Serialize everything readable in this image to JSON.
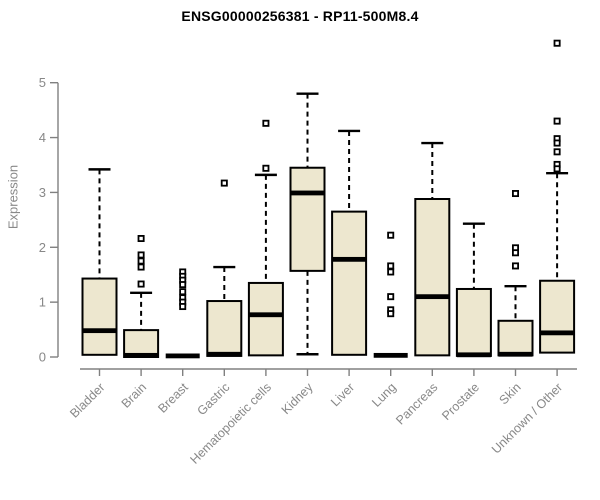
{
  "chart_data": {
    "type": "boxplot",
    "title": "ENSG00000256381 - RP11-500M8.4",
    "ylabel": "Expression",
    "ylim": [
      0,
      5.8
    ],
    "yticks": [
      0,
      1,
      2,
      3,
      4,
      5
    ],
    "grid": false,
    "categories": [
      "Bladder",
      "Brain",
      "Breast",
      "Gastric",
      "Hematopoietic cells",
      "Kidney",
      "Liver",
      "Lung",
      "Pancreas",
      "Prostate",
      "Skin",
      "Unknown / Other"
    ],
    "boxes": [
      {
        "category": "Bladder",
        "low": 0.04,
        "q1": 0.04,
        "median": 0.48,
        "q3": 1.43,
        "high": 3.42,
        "outliers": []
      },
      {
        "category": "Brain",
        "low": 0.0,
        "q1": 0.0,
        "median": 0.03,
        "q3": 0.49,
        "high": 1.17,
        "outliers": [
          2.16,
          1.86,
          1.75,
          1.64,
          1.33
        ]
      },
      {
        "category": "Breast",
        "low": 0.0,
        "q1": 0.0,
        "median": 0.02,
        "q3": 0.04,
        "high": 0.04,
        "outliers": [
          1.55,
          1.47,
          1.4,
          1.32,
          1.19,
          1.08,
          1.0,
          0.92
        ]
      },
      {
        "category": "Gastric",
        "low": 0.02,
        "q1": 0.02,
        "median": 0.05,
        "q3": 1.02,
        "high": 1.64,
        "outliers": [
          3.17
        ]
      },
      {
        "category": "Hematopoietic cells",
        "low": 0.03,
        "q1": 0.03,
        "median": 0.77,
        "q3": 1.35,
        "high": 3.32,
        "outliers": [
          4.26,
          3.44
        ]
      },
      {
        "category": "Kidney",
        "low": 0.05,
        "q1": 1.57,
        "median": 2.99,
        "q3": 3.45,
        "high": 4.8,
        "outliers": []
      },
      {
        "category": "Liver",
        "low": 0.04,
        "q1": 0.04,
        "median": 1.78,
        "q3": 2.65,
        "high": 4.12,
        "outliers": []
      },
      {
        "category": "Lung",
        "low": 0.0,
        "q1": 0.0,
        "median": 0.03,
        "q3": 0.05,
        "high": 0.05,
        "outliers": [
          2.22,
          1.66,
          1.55,
          1.1,
          0.86,
          0.79
        ]
      },
      {
        "category": "Pancreas",
        "low": 0.03,
        "q1": 0.03,
        "median": 1.1,
        "q3": 2.88,
        "high": 3.9,
        "outliers": []
      },
      {
        "category": "Prostate",
        "low": 0.02,
        "q1": 0.02,
        "median": 0.04,
        "q3": 1.24,
        "high": 2.43,
        "outliers": []
      },
      {
        "category": "Skin",
        "low": 0.03,
        "q1": 0.03,
        "median": 0.05,
        "q3": 0.66,
        "high": 1.29,
        "outliers": [
          2.98,
          1.99,
          1.9,
          1.66
        ]
      },
      {
        "category": "Unknown / Other",
        "low": 0.08,
        "q1": 0.08,
        "median": 0.44,
        "q3": 1.39,
        "high": 3.35,
        "outliers": [
          5.72,
          4.3,
          3.98,
          3.9,
          3.74,
          3.51,
          3.43
        ]
      }
    ],
    "colors": {
      "box_fill": "#EDE7CF",
      "box_border": "#000000",
      "median": "#000000",
      "whisker": "#000000",
      "outlier_stroke": "#000000",
      "outlier_fill": "#ffffff",
      "axis": "#808080",
      "tick_label": "#888888",
      "title": "#000000",
      "background": "#ffffff"
    }
  }
}
